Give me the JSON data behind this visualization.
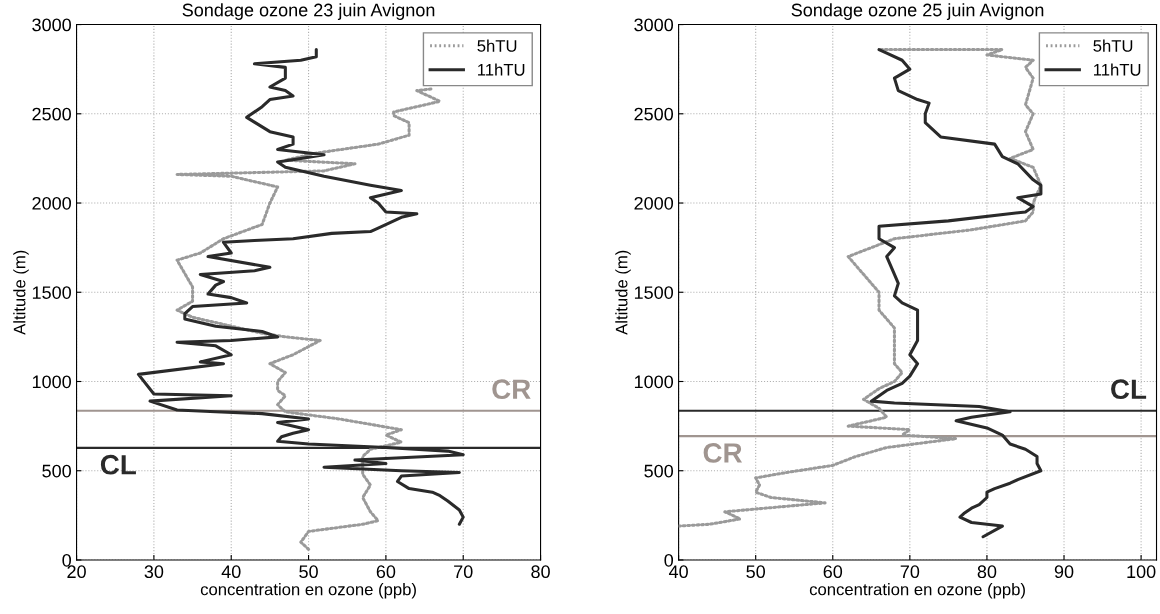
{
  "chart_data": [
    {
      "type": "line",
      "title": "Sondage ozone 23 juin Avignon",
      "xlabel": "concentration en ozone (ppb)",
      "ylabel": "Altitude (m)",
      "xlim": [
        20,
        80
      ],
      "xticks": [
        20,
        30,
        40,
        50,
        60,
        70,
        80
      ],
      "ylim": [
        0,
        3000
      ],
      "yticks": [
        0,
        500,
        1000,
        1500,
        2000,
        2500,
        3000
      ],
      "grid": true,
      "legend": "top right",
      "series": [
        {
          "name": "5hTU",
          "color": "#9a9a9a",
          "line_style": "dotted",
          "x": [
            50,
            49,
            49.5,
            50,
            57,
            59,
            58,
            57,
            58,
            57,
            57,
            57,
            58,
            62,
            60,
            62,
            58,
            54,
            47,
            46,
            47,
            46,
            46,
            47,
            45,
            48,
            51.5,
            47,
            44,
            38,
            35,
            33,
            35,
            35,
            33,
            36,
            39,
            44,
            45,
            46,
            40,
            33,
            52,
            56,
            47,
            51,
            59,
            63,
            63,
            61,
            61,
            63,
            67,
            64,
            66
          ],
          "values": [
            60,
            100,
            130,
            160,
            200,
            220,
            270,
            350,
            420,
            480,
            520,
            580,
            620,
            660,
            700,
            730,
            760,
            790,
            830,
            870,
            920,
            950,
            1000,
            1050,
            1100,
            1150,
            1230,
            1250,
            1270,
            1330,
            1360,
            1400,
            1450,
            1530,
            1680,
            1720,
            1800,
            1880,
            2000,
            2090,
            2150,
            2160,
            2180,
            2220,
            2240,
            2280,
            2330,
            2380,
            2450,
            2490,
            2510,
            2530,
            2570,
            2630,
            2640
          ]
        },
        {
          "name": "11hTU",
          "color": "#2a2a2a",
          "line_style": "solid",
          "x": [
            69.5,
            70,
            69.5,
            68,
            67,
            66,
            63,
            61.5,
            62,
            69.5,
            62,
            52,
            60,
            56,
            70,
            68,
            60,
            55,
            50,
            46,
            46.5,
            48,
            50,
            46,
            50,
            44,
            38,
            33,
            29.5,
            40,
            30,
            28,
            39,
            36,
            40,
            38,
            33,
            40,
            46,
            44,
            38,
            34,
            34,
            35,
            42,
            40,
            37,
            38,
            39,
            36,
            43,
            45,
            37,
            40,
            39,
            43,
            48,
            53,
            58,
            59,
            62,
            64,
            60,
            59,
            58,
            62,
            58,
            52,
            47,
            46,
            49,
            52,
            46,
            48,
            48,
            45,
            42,
            44,
            45,
            48,
            47,
            45,
            47,
            47,
            43,
            49,
            51,
            51
          ],
          "values": [
            200,
            240,
            280,
            330,
            360,
            380,
            400,
            440,
            470,
            490,
            500,
            520,
            540,
            560,
            590,
            610,
            630,
            640,
            650,
            665,
            690,
            710,
            730,
            770,
            790,
            820,
            830,
            840,
            890,
            920,
            930,
            1040,
            1100,
            1110,
            1150,
            1200,
            1220,
            1230,
            1250,
            1280,
            1310,
            1350,
            1380,
            1420,
            1440,
            1470,
            1490,
            1540,
            1560,
            1600,
            1620,
            1640,
            1700,
            1720,
            1780,
            1790,
            1800,
            1830,
            1840,
            1860,
            1920,
            1940,
            1950,
            2000,
            2030,
            2070,
            2100,
            2150,
            2200,
            2230,
            2250,
            2270,
            2300,
            2330,
            2370,
            2400,
            2480,
            2540,
            2580,
            2600,
            2630,
            2650,
            2700,
            2760,
            2780,
            2800,
            2820,
            2860
          ]
        }
      ],
      "ref_lines": [
        {
          "axis": "y",
          "value": 836,
          "label": "CR",
          "color": "#a09590"
        },
        {
          "axis": "y",
          "value": 628,
          "label": "CL",
          "color": "#2a2a2a"
        }
      ]
    },
    {
      "type": "line",
      "title": "Sondage ozone 25 juin Avignon",
      "xlabel": "concentration en ozone (ppb)",
      "ylabel": "Altitude (m)",
      "xlim": [
        40,
        102
      ],
      "xticks": [
        40,
        50,
        60,
        70,
        80,
        90,
        100
      ],
      "ylim": [
        0,
        3000
      ],
      "yticks": [
        0,
        500,
        1000,
        1500,
        2000,
        2500,
        3000
      ],
      "grid": true,
      "legend": "top right",
      "series": [
        {
          "name": "5hTU",
          "color": "#9a9a9a",
          "line_style": "dotted",
          "x": [
            40,
            44,
            48,
            46,
            59,
            52,
            50,
            50.5,
            50,
            54,
            60,
            63,
            67,
            76,
            69,
            70,
            62,
            67,
            66,
            64,
            66,
            68,
            69,
            68,
            68,
            68,
            66,
            66,
            65,
            63,
            62,
            65,
            68,
            78,
            85,
            86,
            86,
            87,
            86,
            83,
            86,
            85,
            86,
            85,
            86,
            85,
            86,
            80,
            82,
            78,
            66
          ],
          "values": [
            190,
            200,
            230,
            270,
            320,
            350,
            380,
            420,
            460,
            490,
            530,
            580,
            630,
            680,
            700,
            730,
            750,
            800,
            850,
            900,
            960,
            1000,
            1050,
            1100,
            1200,
            1300,
            1400,
            1500,
            1550,
            1650,
            1700,
            1750,
            1800,
            1850,
            1900,
            1950,
            2000,
            2100,
            2200,
            2250,
            2300,
            2400,
            2500,
            2550,
            2700,
            2760,
            2800,
            2830,
            2860,
            2860,
            2860
          ]
        },
        {
          "name": "11hTU",
          "color": "#2a2a2a",
          "line_style": "solid",
          "x": [
            79.5,
            82,
            78,
            76.5,
            77,
            78,
            79,
            80,
            80,
            81,
            83,
            84,
            87,
            86.5,
            86.5,
            85,
            83,
            82,
            80,
            76,
            78,
            83,
            79,
            68,
            65,
            67,
            69,
            70,
            71,
            70,
            71,
            71,
            71,
            69,
            68,
            68.5,
            68,
            67,
            68,
            66,
            66,
            75,
            85,
            86,
            84,
            87,
            87,
            86,
            84,
            82,
            81,
            74,
            72,
            72,
            72.5,
            71,
            68.5,
            68,
            70,
            69,
            67,
            66
          ],
          "values": [
            130,
            190,
            210,
            240,
            260,
            290,
            310,
            350,
            380,
            400,
            430,
            450,
            500,
            540,
            580,
            620,
            650,
            700,
            740,
            780,
            800,
            830,
            860,
            880,
            890,
            950,
            990,
            1030,
            1100,
            1150,
            1230,
            1300,
            1400,
            1440,
            1480,
            1550,
            1600,
            1700,
            1750,
            1800,
            1870,
            1900,
            1950,
            1980,
            2030,
            2050,
            2100,
            2130,
            2220,
            2260,
            2330,
            2370,
            2450,
            2500,
            2560,
            2580,
            2630,
            2700,
            2750,
            2800,
            2840,
            2860
          ]
        }
      ],
      "ref_lines": [
        {
          "axis": "y",
          "value": 836,
          "label": "CL",
          "color": "#2a2a2a"
        },
        {
          "axis": "y",
          "value": 694,
          "label": "CR",
          "color": "#a09590"
        }
      ]
    }
  ]
}
